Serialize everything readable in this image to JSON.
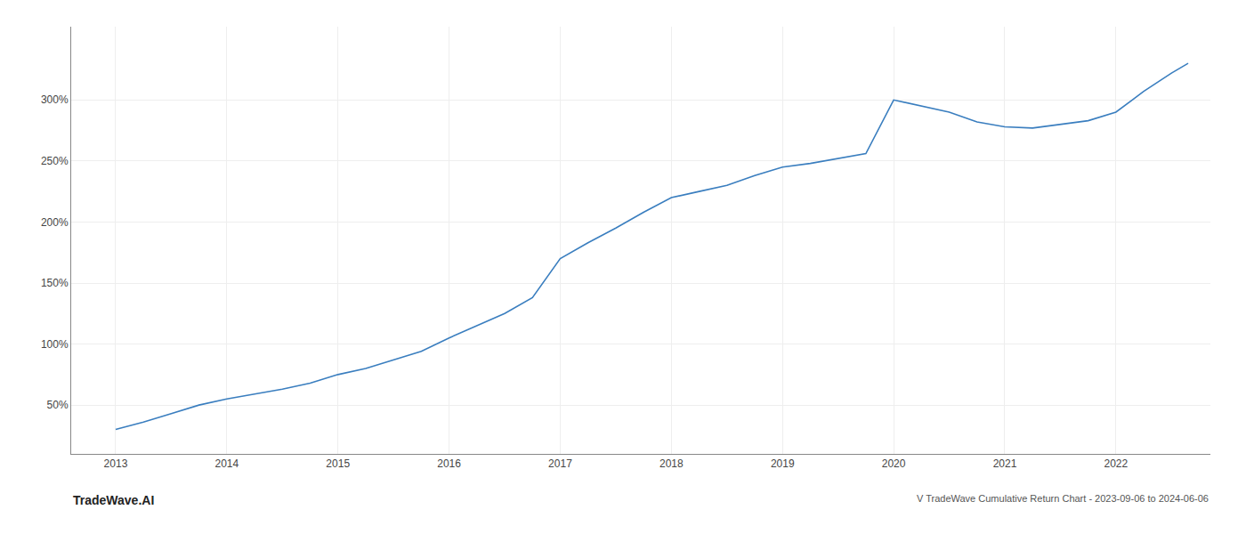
{
  "chart_data": {
    "type": "line",
    "x": [
      2013.0,
      2013.25,
      2013.5,
      2013.75,
      2014.0,
      2014.25,
      2014.5,
      2014.75,
      2015.0,
      2015.25,
      2015.5,
      2015.75,
      2016.0,
      2016.25,
      2016.5,
      2016.75,
      2017.0,
      2017.25,
      2017.5,
      2017.75,
      2018.0,
      2018.25,
      2018.5,
      2018.75,
      2019.0,
      2019.25,
      2019.5,
      2019.75,
      2020.0,
      2020.25,
      2020.5,
      2020.75,
      2021.0,
      2021.25,
      2021.5,
      2021.75,
      2022.0,
      2022.25,
      2022.5,
      2022.65
    ],
    "values": [
      30,
      36,
      43,
      50,
      55,
      59,
      63,
      68,
      75,
      80,
      87,
      94,
      105,
      115,
      125,
      138,
      170,
      183,
      195,
      208,
      220,
      225,
      230,
      238,
      245,
      248,
      252,
      256,
      300,
      295,
      290,
      282,
      278,
      277,
      280,
      283,
      290,
      307,
      322,
      330
    ],
    "color": "#3a7ebf",
    "xlim": [
      2012.6,
      2022.85
    ],
    "xticks": [
      2013,
      2014,
      2015,
      2016,
      2017,
      2018,
      2019,
      2020,
      2021,
      2022
    ],
    "ylim": [
      10,
      360
    ],
    "yticks": [
      {
        "value": 50,
        "label": "50%"
      },
      {
        "value": 100,
        "label": "100%"
      },
      {
        "value": 150,
        "label": "150%"
      },
      {
        "value": 200,
        "label": "200%"
      },
      {
        "value": 250,
        "label": "250%"
      },
      {
        "value": 300,
        "label": "300%"
      }
    ],
    "grid": true,
    "annotations": [
      "TradeWave.AI",
      "V TradeWave Cumulative Return Chart - 2023-09-06 to 2024-06-06"
    ]
  }
}
